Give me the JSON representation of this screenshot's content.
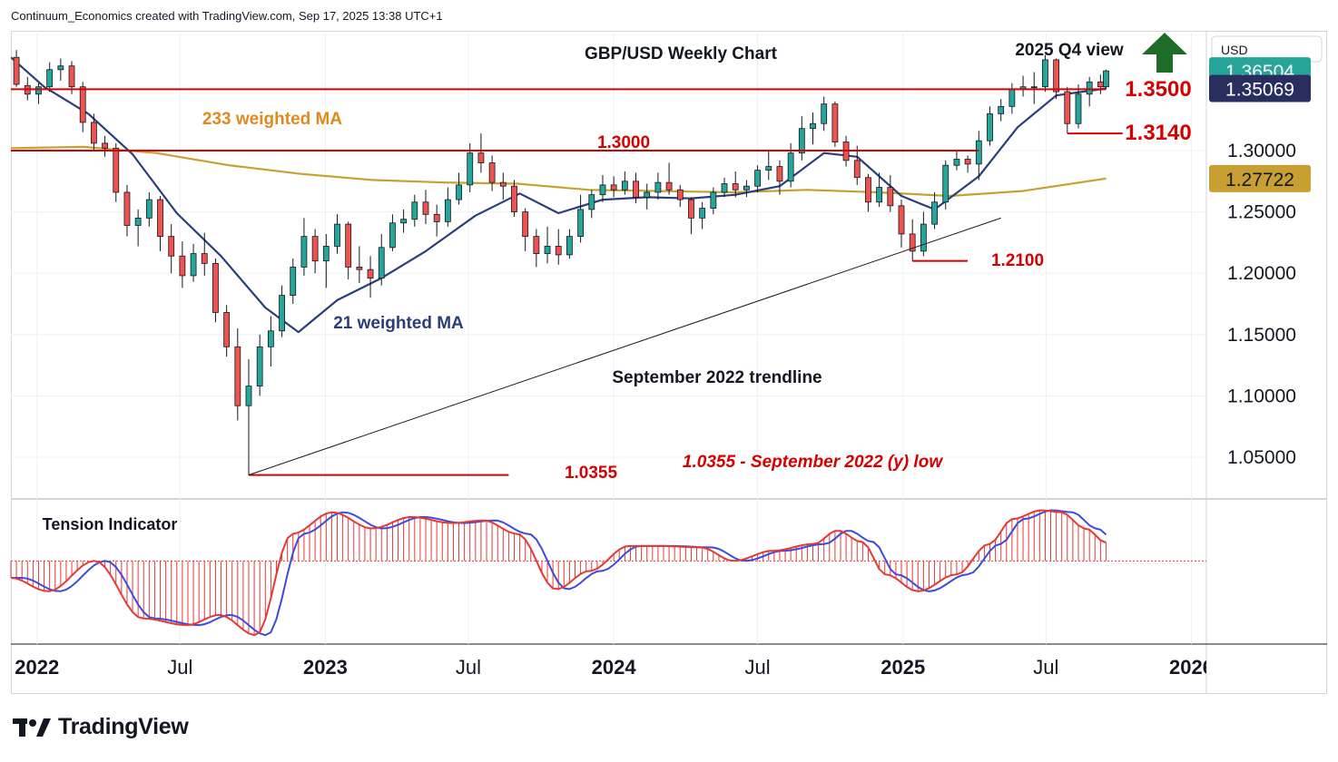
{
  "header": {
    "text": "Continuum_Economics created with TradingView.com, Sep 17, 2025 13:38 UTC+1"
  },
  "brand": {
    "name": "TradingView",
    "icon": "tradingview-logo-icon"
  },
  "price_axis": {
    "currency": "USD"
  },
  "chart_data": {
    "type": "candlestick",
    "title": "GBP/USD Weekly Chart",
    "subtitle": "2025 Q4 view",
    "symbol_currency": "USD",
    "y_ticks": [
      1.05,
      1.1,
      1.15,
      1.2,
      1.25,
      1.3
    ],
    "y_tick_labels": [
      "1.05000",
      "1.10000",
      "1.15000",
      "1.20000",
      "1.25000",
      "1.30000"
    ],
    "ylim": [
      1.01,
      1.39
    ],
    "x_labels": [
      {
        "label": "2022",
        "date": "2022-01-01",
        "bold": true
      },
      {
        "label": "Jul",
        "date": "2022-07-01",
        "bold": false
      },
      {
        "label": "2023",
        "date": "2023-01-01",
        "bold": true
      },
      {
        "label": "Jul",
        "date": "2023-07-01",
        "bold": false
      },
      {
        "label": "2024",
        "date": "2024-01-01",
        "bold": true
      },
      {
        "label": "Jul",
        "date": "2024-07-01",
        "bold": false
      },
      {
        "label": "2025",
        "date": "2025-01-01",
        "bold": true
      },
      {
        "label": "Jul",
        "date": "2025-07-01",
        "bold": false
      },
      {
        "label": "2026",
        "date": "2026-01-01",
        "bold": true
      }
    ],
    "xlim": [
      "2021-11-29",
      "2026-01-20"
    ],
    "price_tags": [
      {
        "label": "1.36504",
        "value": 1.365,
        "bg": "#26a69a",
        "fg": "#ffffff"
      },
      {
        "label": "1.35069",
        "value": 1.3507,
        "bg": "#2a2e5f",
        "fg": "#ffffff"
      },
      {
        "label": "1.27722",
        "value": 1.2772,
        "bg": "#c8a032",
        "fg": "#131722"
      }
    ],
    "levels": [
      {
        "label": "1.3500",
        "value": 1.35,
        "from": "2021-11-29",
        "to": "2025-09-15",
        "color": "#d50000"
      },
      {
        "label": "1.3000",
        "value": 1.3,
        "from": "2021-11-29",
        "to": "2025-04-07",
        "color": "#d50000"
      },
      {
        "label": "1.3140",
        "value": 1.314,
        "from": "2025-07-28",
        "to": "2025-10-06",
        "color": "#d50000"
      },
      {
        "label": "1.2100",
        "value": 1.21,
        "from": "2025-01-13",
        "to": "2025-03-24",
        "color": "#d50000"
      },
      {
        "label": "1.0355",
        "value": 1.0355,
        "from": "2022-09-26",
        "to": "2023-08-21",
        "color": "#d50000"
      }
    ],
    "trendline": {
      "label": "September 2022 trendline",
      "from": {
        "date": "2022-09-26",
        "value": 1.0355
      },
      "to": {
        "date": "2025-05-05",
        "value": 1.245
      }
    },
    "annotations": [
      {
        "text": "233 weighted MA",
        "color": "#e08a1e"
      },
      {
        "text": "21 weighted MA",
        "color": "#2a3f7a"
      },
      {
        "text": "1.0355 - September 2022 (y) low",
        "color": "#d50000",
        "italic": true
      }
    ],
    "arrow": {
      "direction": "up",
      "color": "#1e6b2a",
      "icon": "up-arrow-icon"
    },
    "series": [
      {
        "name": "233 weighted MA",
        "color": "#c8a032",
        "points": [
          [
            "2021-11-29",
            1.302
          ],
          [
            "2022-03-01",
            1.303
          ],
          [
            "2022-06-01",
            1.298
          ],
          [
            "2022-09-01",
            1.288
          ],
          [
            "2022-12-01",
            1.281
          ],
          [
            "2023-03-01",
            1.276
          ],
          [
            "2023-06-01",
            1.274
          ],
          [
            "2023-09-01",
            1.273
          ],
          [
            "2023-12-01",
            1.268
          ],
          [
            "2024-03-01",
            1.267
          ],
          [
            "2024-06-01",
            1.266
          ],
          [
            "2024-09-01",
            1.268
          ],
          [
            "2024-12-01",
            1.266
          ],
          [
            "2025-03-01",
            1.263
          ],
          [
            "2025-06-01",
            1.267
          ],
          [
            "2025-09-15",
            1.2772
          ]
        ]
      },
      {
        "name": "21 weighted MA",
        "color": "#2a3f7a",
        "points": [
          [
            "2021-11-29",
            1.376
          ],
          [
            "2022-01-10",
            1.352
          ],
          [
            "2022-03-07",
            1.33
          ],
          [
            "2022-05-02",
            1.297
          ],
          [
            "2022-06-27",
            1.249
          ],
          [
            "2022-08-22",
            1.214
          ],
          [
            "2022-10-17",
            1.172
          ],
          [
            "2022-11-28",
            1.152
          ],
          [
            "2023-01-16",
            1.178
          ],
          [
            "2023-03-13",
            1.196
          ],
          [
            "2023-05-08",
            1.218
          ],
          [
            "2023-07-10",
            1.247
          ],
          [
            "2023-09-04",
            1.265
          ],
          [
            "2023-10-23",
            1.249
          ],
          [
            "2023-12-18",
            1.26
          ],
          [
            "2024-02-12",
            1.262
          ],
          [
            "2024-04-08",
            1.261
          ],
          [
            "2024-06-03",
            1.264
          ],
          [
            "2024-07-29",
            1.271
          ],
          [
            "2024-09-23",
            1.298
          ],
          [
            "2024-11-04",
            1.295
          ],
          [
            "2024-12-30",
            1.263
          ],
          [
            "2025-02-10",
            1.252
          ],
          [
            "2025-04-07",
            1.279
          ],
          [
            "2025-05-26",
            1.319
          ],
          [
            "2025-07-14",
            1.345
          ],
          [
            "2025-09-15",
            1.3507
          ]
        ]
      }
    ],
    "candles": [
      [
        "2021-12-06",
        1.376,
        1.382,
        1.352,
        1.354
      ],
      [
        "2021-12-20",
        1.353,
        1.36,
        1.341,
        1.346
      ],
      [
        "2022-01-03",
        1.346,
        1.355,
        1.338,
        1.352
      ],
      [
        "2022-01-17",
        1.352,
        1.372,
        1.348,
        1.366
      ],
      [
        "2022-01-31",
        1.366,
        1.375,
        1.357,
        1.369
      ],
      [
        "2022-02-14",
        1.369,
        1.373,
        1.346,
        1.352
      ],
      [
        "2022-02-28",
        1.352,
        1.356,
        1.315,
        1.323
      ],
      [
        "2022-03-14",
        1.323,
        1.33,
        1.3,
        1.306
      ],
      [
        "2022-03-28",
        1.306,
        1.312,
        1.295,
        1.302
      ],
      [
        "2022-04-11",
        1.302,
        1.306,
        1.258,
        1.266
      ],
      [
        "2022-04-25",
        1.266,
        1.272,
        1.23,
        1.239
      ],
      [
        "2022-05-09",
        1.239,
        1.252,
        1.222,
        1.245
      ],
      [
        "2022-05-23",
        1.245,
        1.266,
        1.238,
        1.26
      ],
      [
        "2022-06-06",
        1.26,
        1.263,
        1.218,
        1.23
      ],
      [
        "2022-06-20",
        1.23,
        1.24,
        1.2,
        1.214
      ],
      [
        "2022-07-04",
        1.214,
        1.226,
        1.188,
        1.198
      ],
      [
        "2022-07-18",
        1.198,
        1.224,
        1.193,
        1.216
      ],
      [
        "2022-08-01",
        1.216,
        1.233,
        1.198,
        1.208
      ],
      [
        "2022-08-15",
        1.208,
        1.212,
        1.16,
        1.168
      ],
      [
        "2022-08-29",
        1.168,
        1.174,
        1.132,
        1.14
      ],
      [
        "2022-09-12",
        1.14,
        1.155,
        1.08,
        1.092
      ],
      [
        "2022-09-26",
        1.092,
        1.13,
        1.0355,
        1.108
      ],
      [
        "2022-10-10",
        1.108,
        1.15,
        1.1,
        1.14
      ],
      [
        "2022-10-24",
        1.14,
        1.165,
        1.124,
        1.153
      ],
      [
        "2022-11-07",
        1.153,
        1.19,
        1.148,
        1.182
      ],
      [
        "2022-11-21",
        1.182,
        1.212,
        1.175,
        1.205
      ],
      [
        "2022-12-05",
        1.205,
        1.245,
        1.198,
        1.23
      ],
      [
        "2022-12-19",
        1.23,
        1.236,
        1.2,
        1.21
      ],
      [
        "2023-01-02",
        1.21,
        1.232,
        1.188,
        1.222
      ],
      [
        "2023-01-16",
        1.222,
        1.248,
        1.216,
        1.24
      ],
      [
        "2023-01-30",
        1.24,
        1.242,
        1.195,
        1.205
      ],
      [
        "2023-02-13",
        1.205,
        1.222,
        1.192,
        1.203
      ],
      [
        "2023-02-27",
        1.203,
        1.214,
        1.18,
        1.196
      ],
      [
        "2023-03-13",
        1.196,
        1.232,
        1.19,
        1.221
      ],
      [
        "2023-03-27",
        1.221,
        1.248,
        1.218,
        1.241
      ],
      [
        "2023-04-10",
        1.241,
        1.252,
        1.233,
        1.244
      ],
      [
        "2023-04-24",
        1.244,
        1.264,
        1.238,
        1.258
      ],
      [
        "2023-05-08",
        1.258,
        1.268,
        1.24,
        1.248
      ],
      [
        "2023-05-22",
        1.248,
        1.256,
        1.23,
        1.242
      ],
      [
        "2023-06-05",
        1.242,
        1.27,
        1.238,
        1.26
      ],
      [
        "2023-06-19",
        1.26,
        1.282,
        1.256,
        1.272
      ],
      [
        "2023-07-03",
        1.272,
        1.306,
        1.266,
        1.298
      ],
      [
        "2023-07-17",
        1.298,
        1.314,
        1.282,
        1.29
      ],
      [
        "2023-07-31",
        1.29,
        1.296,
        1.267,
        1.274
      ],
      [
        "2023-08-14",
        1.274,
        1.282,
        1.26,
        1.271
      ],
      [
        "2023-08-28",
        1.271,
        1.276,
        1.246,
        1.25
      ],
      [
        "2023-09-11",
        1.25,
        1.253,
        1.218,
        1.23
      ],
      [
        "2023-09-25",
        1.23,
        1.236,
        1.205,
        1.216
      ],
      [
        "2023-10-09",
        1.216,
        1.238,
        1.208,
        1.222
      ],
      [
        "2023-10-23",
        1.222,
        1.236,
        1.207,
        1.215
      ],
      [
        "2023-11-06",
        1.215,
        1.236,
        1.212,
        1.23
      ],
      [
        "2023-11-20",
        1.23,
        1.264,
        1.225,
        1.252
      ],
      [
        "2023-12-04",
        1.252,
        1.268,
        1.245,
        1.264
      ],
      [
        "2023-12-18",
        1.264,
        1.28,
        1.258,
        1.272
      ],
      [
        "2024-01-01",
        1.272,
        1.279,
        1.262,
        1.268
      ],
      [
        "2024-01-15",
        1.268,
        1.283,
        1.264,
        1.275
      ],
      [
        "2024-01-29",
        1.275,
        1.282,
        1.257,
        1.262
      ],
      [
        "2024-02-12",
        1.262,
        1.273,
        1.252,
        1.266
      ],
      [
        "2024-02-26",
        1.266,
        1.282,
        1.26,
        1.274
      ],
      [
        "2024-03-11",
        1.274,
        1.29,
        1.264,
        1.268
      ],
      [
        "2024-03-25",
        1.268,
        1.272,
        1.254,
        1.26
      ],
      [
        "2024-04-08",
        1.26,
        1.262,
        1.232,
        1.245
      ],
      [
        "2024-04-22",
        1.245,
        1.258,
        1.236,
        1.253
      ],
      [
        "2024-05-06",
        1.253,
        1.27,
        1.248,
        1.266
      ],
      [
        "2024-05-20",
        1.266,
        1.278,
        1.262,
        1.273
      ],
      [
        "2024-06-03",
        1.273,
        1.283,
        1.262,
        1.268
      ],
      [
        "2024-06-17",
        1.268,
        1.276,
        1.262,
        1.271
      ],
      [
        "2024-07-01",
        1.271,
        1.288,
        1.266,
        1.284
      ],
      [
        "2024-07-15",
        1.284,
        1.3,
        1.276,
        1.287
      ],
      [
        "2024-07-29",
        1.287,
        1.292,
        1.264,
        1.275
      ],
      [
        "2024-08-12",
        1.275,
        1.306,
        1.27,
        1.298
      ],
      [
        "2024-08-26",
        1.298,
        1.328,
        1.292,
        1.318
      ],
      [
        "2024-09-09",
        1.318,
        1.331,
        1.305,
        1.322
      ],
      [
        "2024-09-23",
        1.322,
        1.344,
        1.316,
        1.338
      ],
      [
        "2024-10-07",
        1.338,
        1.34,
        1.303,
        1.307
      ],
      [
        "2024-10-21",
        1.307,
        1.312,
        1.287,
        1.292
      ],
      [
        "2024-11-04",
        1.292,
        1.304,
        1.272,
        1.278
      ],
      [
        "2024-11-18",
        1.278,
        1.281,
        1.25,
        1.258
      ],
      [
        "2024-12-02",
        1.258,
        1.282,
        1.254,
        1.27
      ],
      [
        "2024-12-16",
        1.27,
        1.28,
        1.25,
        1.255
      ],
      [
        "2024-12-30",
        1.255,
        1.26,
        1.221,
        1.232
      ],
      [
        "2025-01-13",
        1.232,
        1.244,
        1.21,
        1.218
      ],
      [
        "2025-01-27",
        1.218,
        1.25,
        1.214,
        1.24
      ],
      [
        "2025-02-10",
        1.24,
        1.266,
        1.236,
        1.258
      ],
      [
        "2025-02-24",
        1.258,
        1.292,
        1.252,
        1.288
      ],
      [
        "2025-03-10",
        1.288,
        1.3,
        1.284,
        1.293
      ],
      [
        "2025-03-24",
        1.293,
        1.296,
        1.282,
        1.289
      ],
      [
        "2025-04-07",
        1.289,
        1.316,
        1.276,
        1.308
      ],
      [
        "2025-04-21",
        1.308,
        1.336,
        1.304,
        1.33
      ],
      [
        "2025-05-05",
        1.33,
        1.342,
        1.324,
        1.336
      ],
      [
        "2025-05-19",
        1.336,
        1.355,
        1.33,
        1.35
      ],
      [
        "2025-06-02",
        1.35,
        1.361,
        1.344,
        1.352
      ],
      [
        "2025-06-16",
        1.352,
        1.364,
        1.338,
        1.352
      ],
      [
        "2025-06-30",
        1.352,
        1.378,
        1.348,
        1.374
      ],
      [
        "2025-07-14",
        1.374,
        1.375,
        1.342,
        1.348
      ],
      [
        "2025-07-28",
        1.348,
        1.352,
        1.314,
        1.322
      ],
      [
        "2025-08-11",
        1.322,
        1.354,
        1.318,
        1.346
      ],
      [
        "2025-08-25",
        1.346,
        1.36,
        1.336,
        1.356
      ],
      [
        "2025-09-08",
        1.356,
        1.362,
        1.346,
        1.352
      ],
      [
        "2025-09-15",
        1.352,
        1.366,
        1.35,
        1.365
      ]
    ]
  },
  "indicator": {
    "title": "Tension Indicator",
    "points": [
      [
        "2021-11-29",
        -0.25
      ],
      [
        "2022-01-15",
        -0.45
      ],
      [
        "2022-03-15",
        0.0
      ],
      [
        "2022-05-15",
        -0.85
      ],
      [
        "2022-07-10",
        -0.95
      ],
      [
        "2022-08-20",
        -0.8
      ],
      [
        "2022-10-05",
        -1.1
      ],
      [
        "2022-11-20",
        0.4
      ],
      [
        "2023-01-10",
        0.72
      ],
      [
        "2023-03-01",
        0.48
      ],
      [
        "2023-04-20",
        0.65
      ],
      [
        "2023-06-10",
        0.56
      ],
      [
        "2023-07-20",
        0.6
      ],
      [
        "2023-09-01",
        0.4
      ],
      [
        "2023-10-20",
        -0.42
      ],
      [
        "2023-12-01",
        -0.15
      ],
      [
        "2024-01-20",
        0.22
      ],
      [
        "2024-03-01",
        0.22
      ],
      [
        "2024-04-20",
        0.2
      ],
      [
        "2024-06-01",
        0.0
      ],
      [
        "2024-07-20",
        0.15
      ],
      [
        "2024-09-10",
        0.25
      ],
      [
        "2024-10-10",
        0.45
      ],
      [
        "2024-11-10",
        0.28
      ],
      [
        "2024-12-10",
        -0.2
      ],
      [
        "2025-01-20",
        -0.45
      ],
      [
        "2025-03-10",
        -0.2
      ],
      [
        "2025-04-20",
        0.25
      ],
      [
        "2025-05-20",
        0.62
      ],
      [
        "2025-06-25",
        0.75
      ],
      [
        "2025-07-20",
        0.72
      ],
      [
        "2025-08-20",
        0.48
      ],
      [
        "2025-09-15",
        0.27
      ]
    ],
    "signal_lag_weeks": 2,
    "range": [
      -1.15,
      0.85
    ],
    "colors": {
      "fast": "#e53935",
      "slow": "#3d4ae0",
      "hist": "#e53935"
    }
  },
  "colors": {
    "up": "#26a69a",
    "down": "#ef5350",
    "candle_border": "#131722",
    "grid": "#eef0f4",
    "level": "#d50000",
    "trend": "#131722"
  }
}
